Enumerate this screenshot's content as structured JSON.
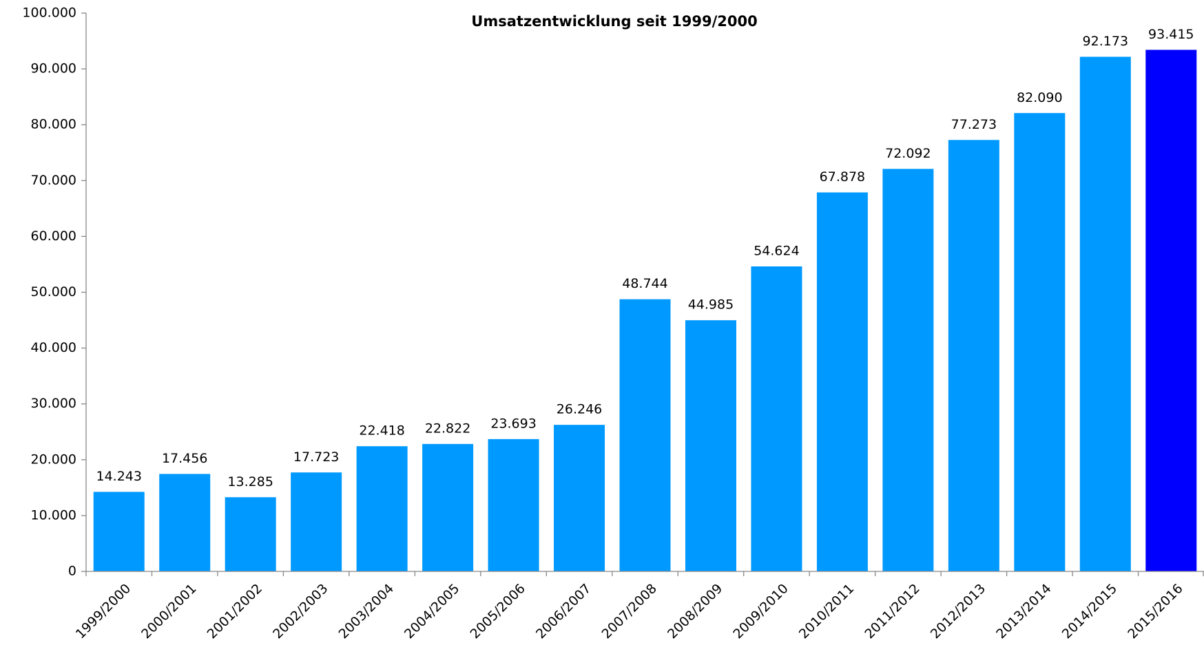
{
  "chart_data": {
    "type": "bar",
    "title": "Umsatzentwicklung seit 1999/2000",
    "categories": [
      "1999/2000",
      "2000/2001",
      "2001/2002",
      "2002/2003",
      "2003/2004",
      "2004/2005",
      "2005/2006",
      "2006/2007",
      "2007/2008",
      "2008/2009",
      "2009/2010",
      "2010/2011",
      "2011/2012",
      "2012/2013",
      "2013/2014",
      "2014/2015",
      "2015/2016"
    ],
    "values": [
      14243,
      17456,
      13285,
      17723,
      22418,
      22822,
      23693,
      26246,
      48744,
      44985,
      54624,
      67878,
      72092,
      77273,
      82090,
      92173,
      93415
    ],
    "value_labels": [
      "14.243",
      "17.456",
      "13.285",
      "17.723",
      "22.418",
      "22.822",
      "23.693",
      "26.246",
      "48.744",
      "44.985",
      "54.624",
      "67.878",
      "72.092",
      "77.273",
      "82.090",
      "92.173",
      "93.415"
    ],
    "colors": [
      "#0099ff",
      "#0099ff",
      "#0099ff",
      "#0099ff",
      "#0099ff",
      "#0099ff",
      "#0099ff",
      "#0099ff",
      "#0099ff",
      "#0099ff",
      "#0099ff",
      "#0099ff",
      "#0099ff",
      "#0099ff",
      "#0099ff",
      "#0099ff",
      "#0000ff"
    ],
    "ylim": [
      0,
      100000
    ],
    "yticks": [
      0,
      {
        "value": 10000,
        "label": "10.000"
      },
      {
        "value": 20000,
        "label": "20.000"
      },
      {
        "value": 30000,
        "label": "30.000"
      },
      {
        "value": 40000,
        "label": "40.000"
      },
      {
        "value": 50000,
        "label": "50.000"
      },
      {
        "value": 60000,
        "label": "60.000"
      },
      {
        "value": 70000,
        "label": "70.000"
      },
      {
        "value": 80000,
        "label": "80.000"
      },
      {
        "value": 90000,
        "label": "90.000"
      },
      {
        "value": 100000,
        "label": "100.000"
      }
    ],
    "grid": false
  }
}
